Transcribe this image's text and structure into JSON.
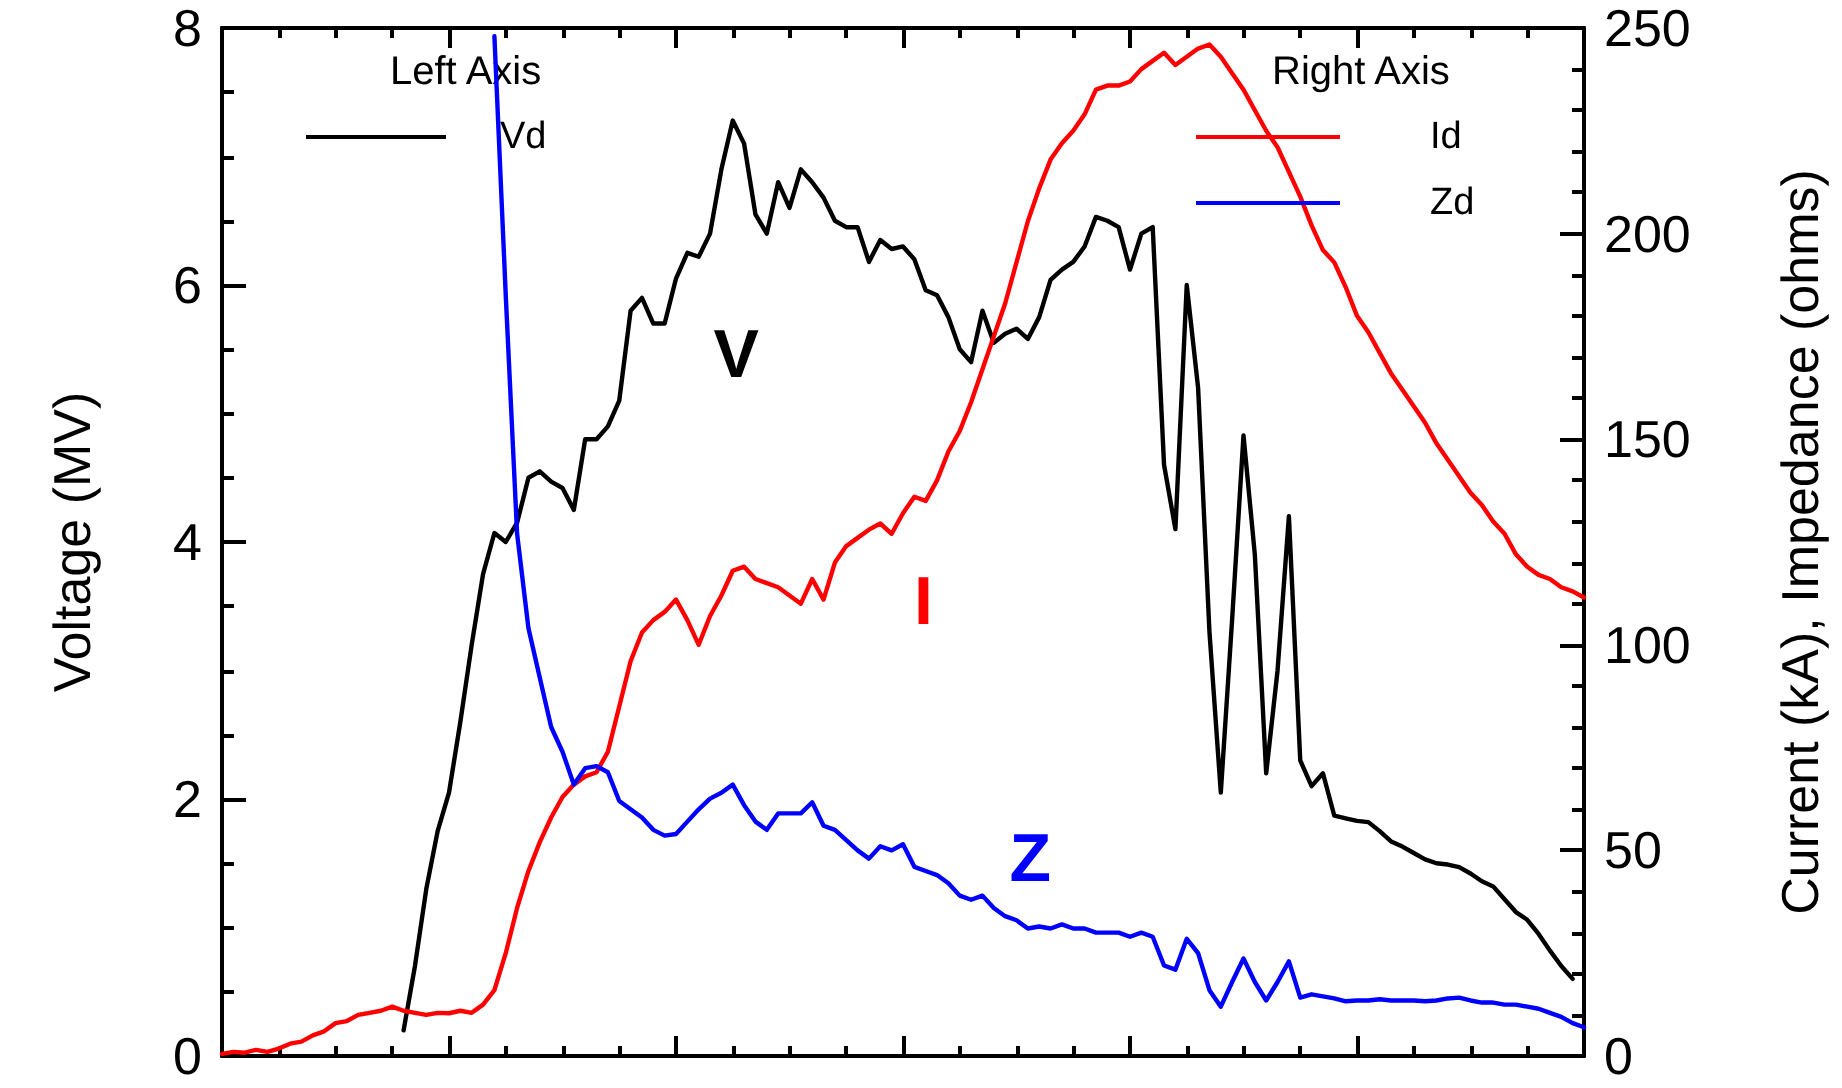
{
  "chart_data": {
    "type": "line",
    "ylabel": "Voltage (MV)",
    "y2label": "Current (kA), Impedance (ohms)",
    "annotations": [
      "Left Axis",
      "Right Axis",
      "V",
      "I",
      "Z"
    ],
    "categories": [
      null,
      null,
      null,
      null,
      null,
      null,
      null,
      null,
      null,
      null,
      null,
      null,
      null,
      null,
      null,
      null,
      null,
      null,
      null,
      null,
      null,
      null,
      null,
      null,
      null,
      null,
      null,
      null,
      null,
      null,
      null,
      null,
      null,
      null,
      null,
      null,
      null,
      null,
      null,
      null,
      null,
      null,
      null,
      null,
      null,
      null,
      null,
      null,
      null,
      null,
      null,
      null,
      null,
      null,
      null,
      null,
      null,
      null,
      null,
      null,
      null,
      null,
      null,
      null,
      null,
      null,
      null,
      null,
      null,
      null,
      null,
      null,
      null,
      null,
      null,
      null,
      null,
      null,
      null,
      null,
      null,
      null,
      null,
      null,
      null,
      null,
      null,
      null,
      null,
      null,
      null,
      null,
      null,
      null,
      null,
      null,
      null,
      null,
      null,
      null,
      null,
      null,
      null,
      null,
      null,
      null,
      null,
      null,
      null,
      null,
      null,
      null,
      null,
      null,
      null,
      null,
      null,
      null,
      null,
      null,
      null
    ],
    "series": [
      {
        "name": "Vd",
        "color": "#000000",
        "values": [
          null,
          null,
          null,
          null,
          null,
          null,
          null,
          null,
          null,
          null,
          null,
          null,
          null,
          null,
          null,
          null,
          0.2,
          0.7,
          1.3,
          1.75,
          2.05,
          2.6,
          3.2,
          3.75,
          4.07,
          4.0,
          4.15,
          4.5,
          4.55,
          4.47,
          4.42,
          4.25,
          4.8,
          4.8,
          4.9,
          5.1,
          5.8,
          5.9,
          5.7,
          5.7,
          6.05,
          6.25,
          6.22,
          6.4,
          6.9,
          7.28,
          7.1,
          6.55,
          6.4,
          6.8,
          6.6,
          6.9,
          6.8,
          6.68,
          6.5,
          6.45,
          6.45,
          6.18,
          6.35,
          6.28,
          6.3,
          6.2,
          5.96,
          5.92,
          5.75,
          5.5,
          5.4,
          5.8,
          5.55,
          5.62,
          5.66,
          5.58,
          5.75,
          6.04,
          6.12,
          6.18,
          6.3,
          6.53,
          6.5,
          6.45,
          6.12,
          6.4,
          6.45,
          4.6,
          4.1,
          6.0,
          5.2,
          3.3,
          2.05,
          3.4,
          4.83,
          3.9,
          2.2,
          3.0,
          4.2,
          2.3,
          2.1,
          2.2,
          1.87,
          1.85,
          1.83,
          1.82,
          1.75,
          1.67,
          1.63,
          1.58,
          1.53,
          1.5,
          1.49,
          1.47,
          1.42,
          1.36,
          1.32,
          1.22,
          1.12,
          1.06,
          0.95,
          0.82,
          0.7,
          0.6,
          null
        ]
      },
      {
        "name": "Id",
        "color": "#ff0000",
        "axis": "y2",
        "values": [
          0.5,
          1,
          0.8,
          1.5,
          1,
          1.8,
          3,
          3.5,
          5,
          6,
          8,
          8.5,
          10,
          10.5,
          11,
          12,
          11,
          10.5,
          10,
          10.5,
          10.4,
          11,
          10.5,
          12.5,
          16,
          25,
          36,
          45,
          52,
          58,
          63,
          66,
          68,
          69,
          74,
          85,
          96,
          103,
          106,
          108,
          111,
          106,
          100,
          107,
          112,
          118,
          119,
          116,
          115,
          114,
          112,
          110,
          116,
          111,
          120,
          124,
          126,
          128,
          129.5,
          127,
          132,
          136,
          135,
          140,
          147,
          152,
          159,
          167,
          175,
          183,
          193,
          203,
          211,
          218,
          222,
          225,
          229,
          235,
          236,
          236,
          237,
          240,
          242,
          244,
          241,
          243,
          245,
          246,
          243,
          239,
          235,
          230,
          225,
          221,
          215,
          209,
          202,
          196,
          193,
          187,
          180,
          176,
          171,
          166,
          162,
          158,
          154,
          149,
          145,
          141,
          137,
          134,
          130,
          127,
          122,
          119,
          117,
          116,
          114,
          113,
          111.5
        ]
      },
      {
        "name": "Zd",
        "color": "#0000ff",
        "axis": "y2",
        "values": [
          null,
          null,
          null,
          null,
          null,
          null,
          null,
          null,
          null,
          null,
          null,
          null,
          null,
          null,
          null,
          null,
          null,
          null,
          null,
          null,
          null,
          null,
          null,
          null,
          248,
          185,
          127,
          104,
          92,
          80,
          74,
          66,
          70,
          70.5,
          69,
          62,
          60,
          58,
          55,
          53.6,
          54,
          57,
          60,
          62.6,
          64,
          66,
          61,
          57,
          55,
          59,
          59,
          59,
          61.7,
          56,
          55,
          52.5,
          50,
          48,
          51,
          50,
          51.5,
          46,
          45,
          44,
          42,
          39,
          38,
          39,
          36,
          34,
          33,
          31,
          31.5,
          31,
          32,
          31,
          31,
          30,
          30,
          30,
          29,
          30,
          29,
          22,
          21,
          28.5,
          25,
          16,
          12,
          18,
          23.7,
          18,
          13.5,
          18,
          23,
          14.2,
          15,
          14.5,
          14,
          13.3,
          13.5,
          13.5,
          13.8,
          13.5,
          13.5,
          13.5,
          13.3,
          13.5,
          14,
          14.2,
          13.5,
          13,
          13,
          12.5,
          12.5,
          12,
          11.5,
          10.5,
          9.5,
          8,
          7
        ]
      }
    ],
    "ylim": [
      0,
      8
    ],
    "yticks": [
      0,
      2,
      4,
      6,
      8
    ],
    "y2lim": [
      0,
      250
    ],
    "y2ticks": [
      0,
      50,
      100,
      150,
      200,
      250
    ],
    "grid": false,
    "legend": "top",
    "line_style": "solid",
    "tick_labels": "y"
  }
}
